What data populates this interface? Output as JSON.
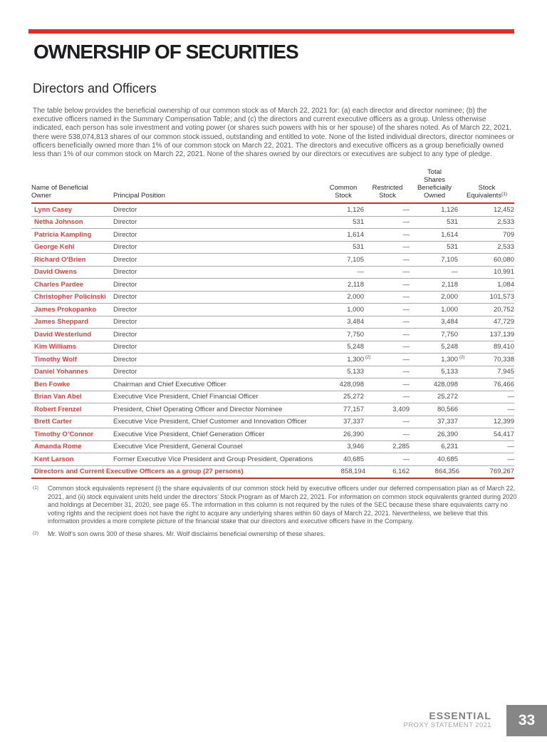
{
  "page": {
    "heading": "OWNERSHIP OF SECURITIES",
    "subheading": "Directors and Officers",
    "intro": "The table below provides the beneficial ownership of our common stock as of March 22, 2021 for: (a) each director and director nominee; (b) the executive officers named in the Summary Compensation Table; and (c) the directors and current executive officers as a group. Unless otherwise indicated, each person has sole investment and voting power (or shares such powers with his or her spouse) of the shares noted. As of March 22, 2021, there were 538,074,813 shares of our common stock issued, outstanding and entitled to vote. None of the listed individual directors, director nominees or officers beneficially owned more than 1% of our common stock on March 22, 2021. The directors and executive officers as a group beneficially owned less than 1% of our common stock on March 22, 2021. None of the shares owned by our directors or executives are subject to any type of pledge."
  },
  "table": {
    "headers": {
      "owner": "Name of Beneficial\nOwner",
      "position": "Principal Position",
      "common": "Common\nStock",
      "restricted": "Restricted\nStock",
      "total": "Total\nShares\nBeneficially\nOwned",
      "equivalents": "Stock\nEquivalents",
      "equivalents_note": "(1)"
    },
    "rows": [
      {
        "name": "Lynn Casey",
        "position": "Director",
        "common": "1,126",
        "restricted": "—",
        "total": "1,126",
        "equivalents": "12,452"
      },
      {
        "name": "Netha Johnson",
        "position": "Director",
        "common": "531",
        "restricted": "—",
        "total": "531",
        "equivalents": "2,533"
      },
      {
        "name": "Patricia Kampling",
        "position": "Director",
        "common": "1,614",
        "restricted": "—",
        "total": "1,614",
        "equivalents": "709"
      },
      {
        "name": "George Kehl",
        "position": "Director",
        "common": "531",
        "restricted": "—",
        "total": "531",
        "equivalents": "2,533"
      },
      {
        "name": "Richard O’Brien",
        "position": "Director",
        "common": "7,105",
        "restricted": "—",
        "total": "7,105",
        "equivalents": "60,080"
      },
      {
        "name": "David Owens",
        "position": "Director",
        "common": "—",
        "restricted": "—",
        "total": "—",
        "equivalents": "10,991"
      },
      {
        "name": "Charles Pardee",
        "position": "Director",
        "common": "2,118",
        "restricted": "—",
        "total": "2,118",
        "equivalents": "1,084"
      },
      {
        "name": "Christopher Policinski",
        "position": "Director",
        "common": "2,000",
        "restricted": "—",
        "total": "2,000",
        "equivalents": "101,573"
      },
      {
        "name": "James Prokopanko",
        "position": "Director",
        "common": "1,000",
        "restricted": "—",
        "total": "1,000",
        "equivalents": "20,752"
      },
      {
        "name": "James Sheppard",
        "position": "Director",
        "common": "3,484",
        "restricted": "—",
        "total": "3,484",
        "equivalents": "47,729"
      },
      {
        "name": "David Westerlund",
        "position": "Director",
        "common": "7,750",
        "restricted": "—",
        "total": "7,750",
        "equivalents": "137,139"
      },
      {
        "name": "Kim Williams",
        "position": "Director",
        "common": "5,248",
        "restricted": "—",
        "total": "5,248",
        "equivalents": "89,410"
      },
      {
        "name": "Timothy Wolf",
        "position": "Director",
        "common": "1,300",
        "common_note": "(2)",
        "restricted": "—",
        "total": "1,300",
        "total_note": "(2)",
        "equivalents": "70,338"
      },
      {
        "name": "Daniel Yohannes",
        "position": "Director",
        "common": "5,133",
        "restricted": "—",
        "total": "5,133",
        "equivalents": "7,945"
      },
      {
        "name": "Ben Fowke",
        "position": "Chairman and Chief Executive Officer",
        "common": "428,098",
        "restricted": "—",
        "total": "428,098",
        "equivalents": "76,466"
      },
      {
        "name": "Brian Van Abel",
        "position": "Executive Vice President, Chief Financial Officer",
        "common": "25,272",
        "restricted": "—",
        "total": "25,272",
        "equivalents": "—"
      },
      {
        "name": "Robert Frenzel",
        "position": "President, Chief Operating Officer and Director Nominee",
        "common": "77,157",
        "restricted": "3,409",
        "total": "80,566",
        "equivalents": "—"
      },
      {
        "name": "Brett Carter",
        "position": "Executive Vice President, Chief Customer and Innovation Officer",
        "common": "37,337",
        "restricted": "—",
        "total": "37,337",
        "equivalents": "12,399"
      },
      {
        "name": "Timothy O’Connor",
        "position": "Executive Vice President, Chief Generation Officer",
        "common": "26,390",
        "restricted": "—",
        "total": "26,390",
        "equivalents": "54,417"
      },
      {
        "name": "Amanda Rome",
        "position": "Executive Vice President, General Counsel",
        "common": "3,946",
        "restricted": "2,285",
        "total": "6,231",
        "equivalents": "—"
      },
      {
        "name": "Kent Larson",
        "position": "Former Executive Vice President and Group President, Operations",
        "common": "40,685",
        "restricted": "—",
        "total": "40,685",
        "equivalents": "—"
      }
    ],
    "group_row": {
      "label": "Directors and Current Executive Officers as a group (27 persons)",
      "common": "858,194",
      "restricted": "6,162",
      "total": "864,356",
      "equivalents": "769,267"
    }
  },
  "footnotes": [
    {
      "marker": "(1)",
      "text": "Common stock equivalents represent (i) the share equivalents of our common stock held by executive officers under our deferred compensation plan as of March 22, 2021, and (ii) stock equivalent units held under the directors’ Stock Program as of March 22, 2021. For information on common stock equivalents granted during 2020 and holdings at December 31, 2020, see page 65. The information in this column is not required by the rules of the SEC because these share equivalents carry no voting rights and the recipient does not have the right to acquire any underlying shares within 60 days of March 22, 2021. Nevertheless, we believe that this information provides a more complete picture of the financial stake that our directors and executive officers have in the Company."
    },
    {
      "marker": "(2)",
      "text": "Mr. Wolf’s son owns 300 of these shares. Mr. Wolf disclaims beneficial ownership of these shares."
    }
  ],
  "footer": {
    "brand": "ESSENTIAL",
    "subtitle": "PROXY STATEMENT 2021",
    "page_number": "33"
  },
  "colors": {
    "accent_red": "#e32b27",
    "name_red": "#e04040",
    "body_gray": "#58585a",
    "page_box_gray": "#868686"
  }
}
